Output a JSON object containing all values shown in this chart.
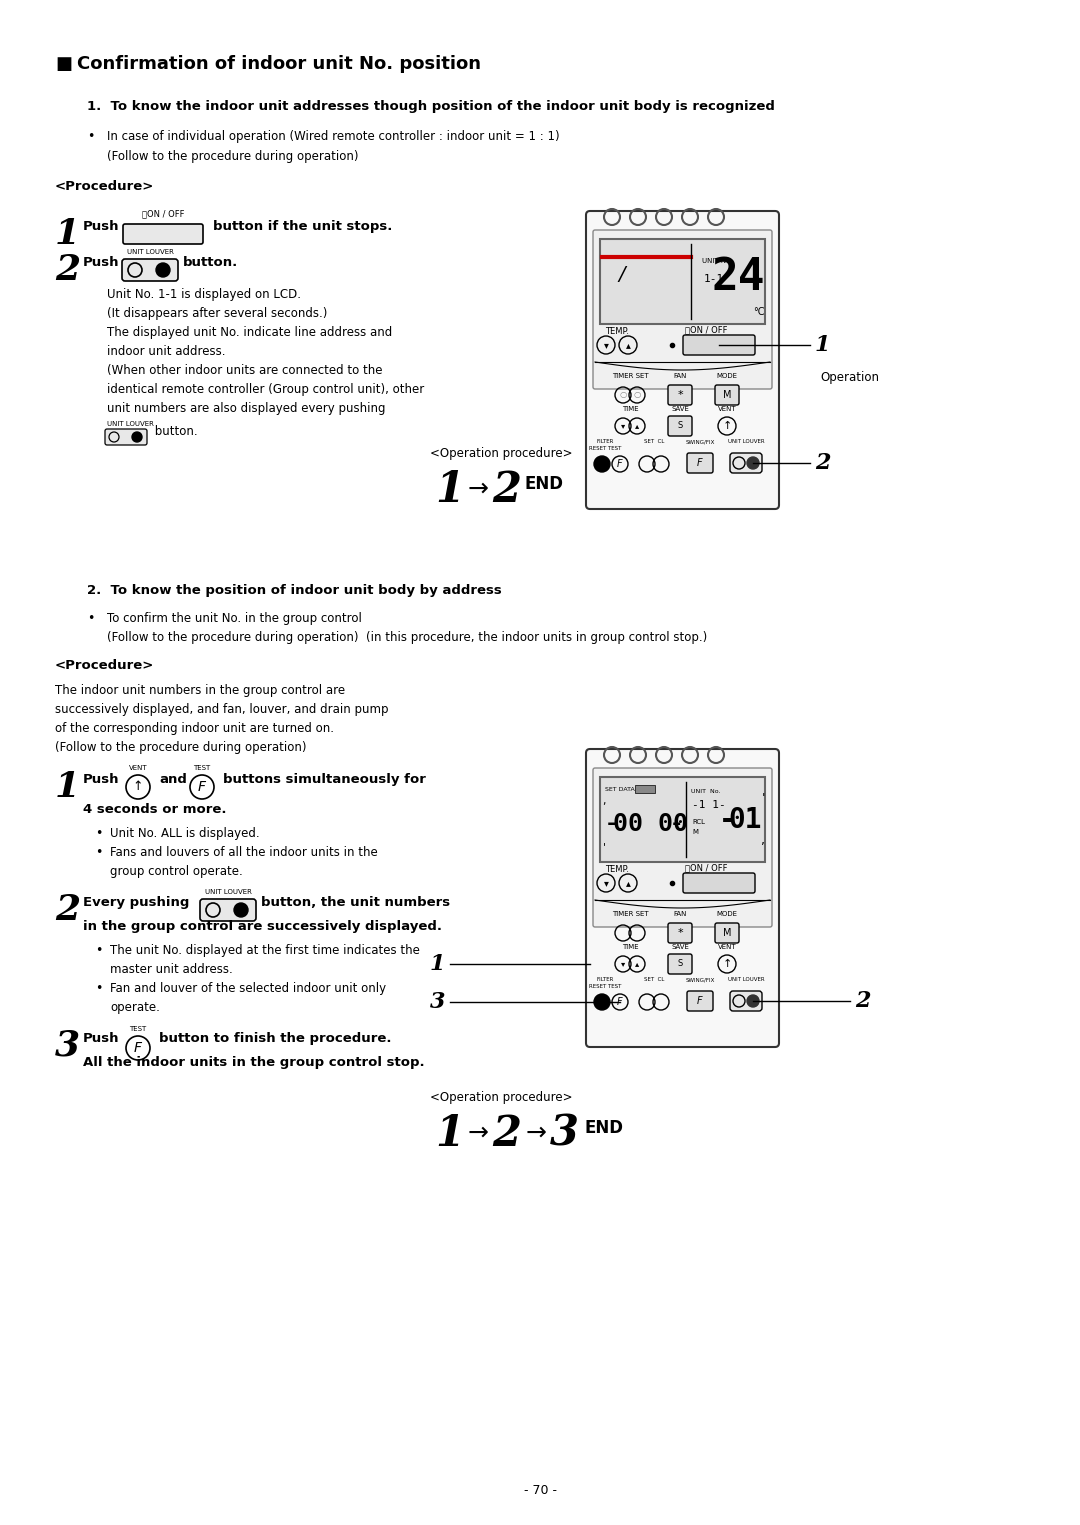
{
  "title": "Confirmation of indoor unit No. position",
  "bg_color": "#ffffff",
  "text_color": "#000000",
  "page_number": "- 70 -",
  "section1_title": "1.  To know the indoor unit addresses though position of the indoor unit body is recognized",
  "section2_title": "2.  To know the position of indoor unit body by address",
  "op_proc_label1": "<Operation procedure>",
  "op_proc_label2": "<Operation procedure>",
  "op_label1": "Operation"
}
